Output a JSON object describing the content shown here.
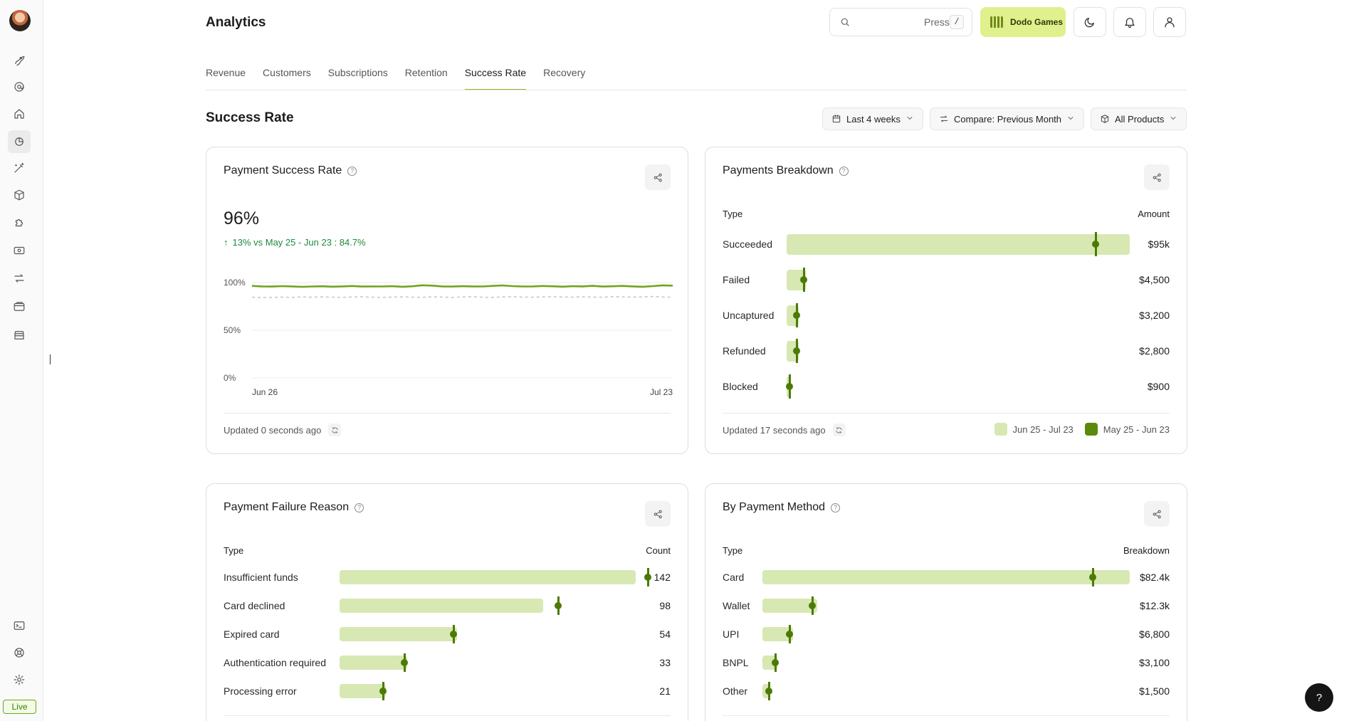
{
  "app": {
    "title": "Analytics"
  },
  "header": {
    "search_press": "Press",
    "search_key": "/",
    "brand_label": "Dodo Games"
  },
  "tabs": [
    {
      "label": "Revenue"
    },
    {
      "label": "Customers"
    },
    {
      "label": "Subscriptions"
    },
    {
      "label": "Retention"
    },
    {
      "label": "Success Rate",
      "active": true
    },
    {
      "label": "Recovery"
    }
  ],
  "section": {
    "title": "Success Rate",
    "filters": {
      "date": "Last 4 weeks",
      "compare": "Compare: Previous Month",
      "products": "All Products"
    }
  },
  "sidebar": {
    "status": "Live"
  },
  "cards": {
    "success_rate": {
      "title": "Payment Success Rate",
      "value": "96%",
      "delta": "13% vs May 25 - Jun 23 : 84.7%",
      "updated": "Updated 0 seconds ago",
      "chart_data": {
        "type": "line",
        "x_labels": [
          "Jun 26",
          "Jul 23"
        ],
        "y_ticks": [
          "100%",
          "50%",
          "0%"
        ],
        "ylim": [
          0,
          100
        ],
        "series": [
          {
            "values": [
              96.5,
              96,
              95.8,
              96.3,
              96,
              95.5,
              95.9,
              96.1,
              95.7,
              96,
              96.4,
              95.8,
              96,
              95.9,
              96.2,
              95.6,
              96.1,
              97.2,
              96.8,
              96,
              95.8,
              96.2,
              96,
              95.9,
              96.5,
              97,
              96.3,
              95.9,
              96,
              96.4,
              96.1,
              95.7,
              96.2,
              96,
              96.6,
              95.8,
              96.1,
              96.5,
              96,
              95.6,
              96.3,
              97.1,
              96.8
            ],
            "color": "#6fa51f",
            "style": "solid"
          },
          {
            "values": [
              84.7,
              84.3,
              84.5,
              84.8,
              84.4,
              84.9,
              84.6,
              85,
              84.7,
              84.5,
              84.9,
              85.1,
              84.6,
              84.4,
              84.8,
              85,
              84.7,
              84.5,
              85.1,
              84.8,
              84.4,
              84.9,
              85.2,
              84.6,
              84.5,
              84.9,
              85.2,
              84.8,
              84.6,
              85,
              85.3,
              84.9,
              84.7,
              85.1,
              84.8,
              84.6,
              85.2,
              84.9,
              84.7,
              85.1,
              85.4,
              84.9,
              84.6
            ],
            "color": "#c8c8c8",
            "style": "dashed"
          }
        ]
      }
    },
    "breakdown": {
      "title": "Payments Breakdown",
      "col_type": "Type",
      "col_amount": "Amount",
      "updated": "Updated 17 seconds ago",
      "legend_current": "Jun 25 - Jul 23",
      "legend_previous": "May 25 - Jun 23",
      "color_current": "#d7e8b2",
      "color_previous": "#5a8a0a",
      "rows": [
        {
          "label": "Succeeded",
          "value": "$95k",
          "current_frac": 1.0,
          "previous_frac": 0.9
        },
        {
          "label": "Failed",
          "value": "$4,500",
          "current_frac": 0.055,
          "previous_frac": 0.05
        },
        {
          "label": "Uncaptured",
          "value": "$3,200",
          "current_frac": 0.035,
          "previous_frac": 0.03
        },
        {
          "label": "Refunded",
          "value": "$2,800",
          "current_frac": 0.035,
          "previous_frac": 0.03
        },
        {
          "label": "Blocked",
          "value": "$900",
          "current_frac": 0.01,
          "previous_frac": 0.008
        }
      ]
    },
    "failure": {
      "title": "Payment Failure Reason",
      "col_type": "Type",
      "col_count": "Count",
      "rows": [
        {
          "label": "Insufficient funds",
          "value": "142",
          "current_frac": 0.96,
          "previous_frac": 1.0
        },
        {
          "label": "Card declined",
          "value": "98",
          "current_frac": 0.66,
          "previous_frac": 0.71
        },
        {
          "label": "Expired card",
          "value": "54",
          "current_frac": 0.38,
          "previous_frac": 0.37
        },
        {
          "label": "Authentication required",
          "value": "33",
          "current_frac": 0.22,
          "previous_frac": 0.21
        },
        {
          "label": "Processing error",
          "value": "21",
          "current_frac": 0.15,
          "previous_frac": 0.14
        }
      ]
    },
    "method": {
      "title": "By Payment Method",
      "col_type": "Type",
      "col_breakdown": "Breakdown",
      "rows": [
        {
          "label": "Card",
          "value": "$82.4k",
          "current_frac": 1.0,
          "previous_frac": 0.9
        },
        {
          "label": "Wallet",
          "value": "$12.3k",
          "current_frac": 0.15,
          "previous_frac": 0.135
        },
        {
          "label": "UPI",
          "value": "$6,800",
          "current_frac": 0.083,
          "previous_frac": 0.073
        },
        {
          "label": "BNPL",
          "value": "$3,100",
          "current_frac": 0.04,
          "previous_frac": 0.035
        },
        {
          "label": "Other",
          "value": "$1,500",
          "current_frac": 0.02,
          "previous_frac": 0.017
        }
      ]
    }
  },
  "help_button": "?"
}
